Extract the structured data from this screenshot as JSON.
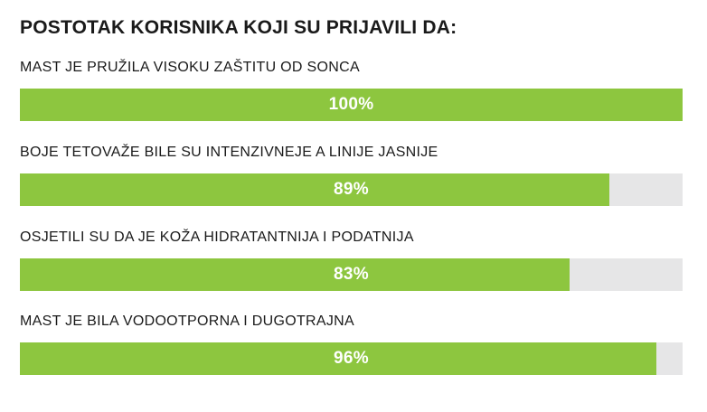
{
  "chart_data": {
    "type": "bar",
    "orientation": "horizontal",
    "title": "POSTOTAK KORISNIKA KOJI SU PRIJAVILI DA:",
    "categories": [
      "MAST JE PRUŽILA VISOKU ZAŠTITU OD SONCA",
      "BOJE TETOVAŽE BILE SU INTENZIVNEJE A LINIJE JASNIJE",
      "OSJETILI SU DA JE KOŽA HIDRATANTNIJA I PODATNIJA",
      "MAST JE BILA VODOOTPORNA I DUGOTRAJNA"
    ],
    "values": [
      100,
      89,
      83,
      96
    ],
    "value_labels": [
      "100%",
      "89%",
      "83%",
      "96%"
    ],
    "xlim": [
      0,
      100
    ],
    "grid": false,
    "legend": "none",
    "colors": {
      "fill": "#8dc63f",
      "track": "#e6e6e7",
      "value_text": "#ffffff",
      "text": "#1a1a1a"
    }
  }
}
